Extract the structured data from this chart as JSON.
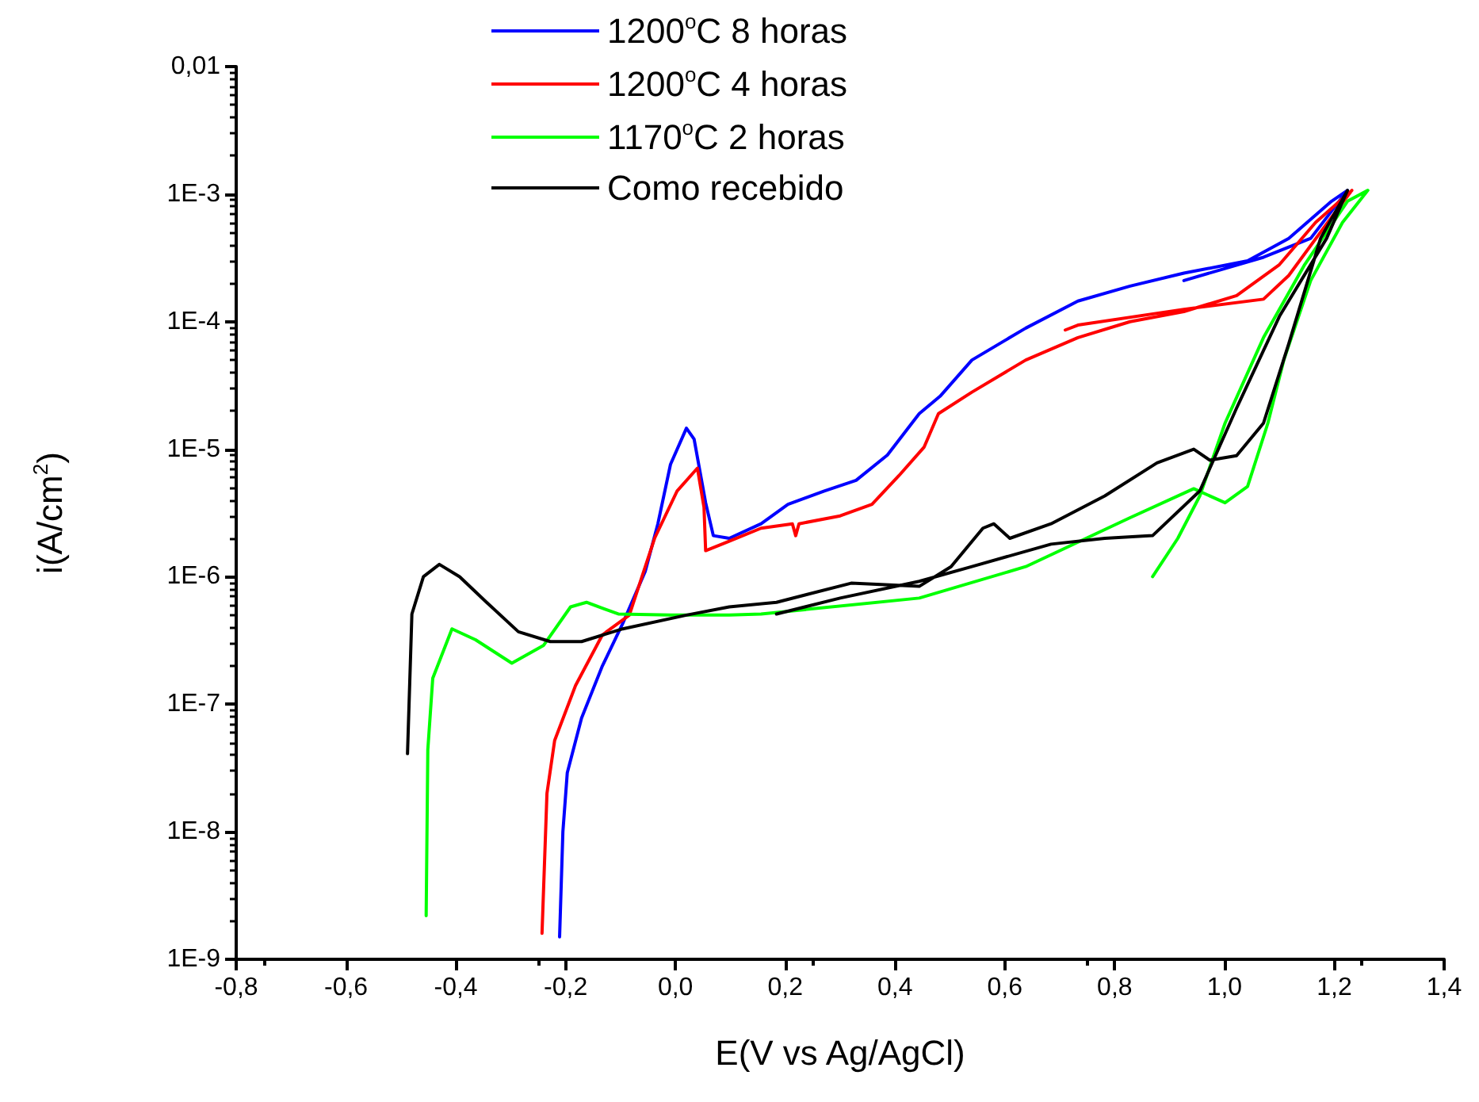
{
  "chart_data": {
    "type": "line",
    "xlabel": "E(V vs Ag/AgCl)",
    "ylabel": "i(A/cm$^{2}$)",
    "log": "y",
    "grid": false,
    "legend": "top",
    "marker": "none",
    "line_style": "solid",
    "xlim": [
      -0.8,
      1.4
    ],
    "xticks": [
      {
        "value": -0.8,
        "label": "-0,8"
      },
      {
        "value": -0.6,
        "label": "-0,6"
      },
      {
        "value": -0.4,
        "label": "-0,4"
      },
      {
        "value": -0.2,
        "label": "-0,2"
      },
      {
        "value": 0,
        "label": "0,0"
      },
      {
        "value": 0.2,
        "label": "0,2"
      },
      {
        "value": 0.4,
        "label": "0,4"
      },
      {
        "value": 0.6,
        "label": "0,6"
      },
      {
        "value": 0.8,
        "label": "0,8"
      },
      {
        "value": 1.0,
        "label": "1,0"
      },
      {
        "value": 1.2,
        "label": "1,2"
      },
      {
        "value": 1.4,
        "label": "1,4"
      }
    ],
    "ylim": [
      1e-09,
      0.01
    ],
    "yticks": [
      {
        "value": 1e-09,
        "label": "1E-9"
      },
      {
        "value": 1e-08,
        "label": "1E-8"
      },
      {
        "value": 1e-07,
        "label": "1E-7"
      },
      {
        "value": 1e-06,
        "label": "1E-6"
      },
      {
        "value": 1e-05,
        "label": "1E-5"
      },
      {
        "value": 0.0001,
        "label": "1E-4"
      },
      {
        "value": 0.001,
        "label": "1E-3"
      },
      {
        "value": 0.01,
        "label": "0,01"
      }
    ],
    "series": [
      {
        "name": "1200$^{o}$C 8 horas",
        "color": "#0000ff",
        "x": [
          -0.211,
          -0.205,
          -0.197,
          -0.171,
          -0.133,
          -0.096,
          -0.055,
          -0.032,
          -0.009,
          0.02,
          0.034,
          0.055,
          0.069,
          0.098,
          0.156,
          0.205,
          0.271,
          0.329,
          0.386,
          0.444,
          0.482,
          0.54,
          0.638,
          0.733,
          0.828,
          0.926,
          1.042,
          1.117,
          1.195,
          1.224,
          1.157,
          1.071,
          0.926
        ],
        "values": [
          1.5e-09,
          1e-08,
          2.9e-08,
          7.8e-08,
          2e-07,
          4.3e-07,
          1.1e-06,
          2.6e-06,
          7.6e-06,
          1.46e-05,
          1.2e-05,
          3.8e-06,
          2.1e-06,
          2e-06,
          2.6e-06,
          3.7e-06,
          4.7e-06,
          5.7e-06,
          9e-06,
          1.9e-05,
          2.6e-05,
          5e-05,
          8.9e-05,
          0.000145,
          0.00019,
          0.00024,
          0.0003,
          0.00045,
          0.00088,
          0.00107,
          0.00045,
          0.00032,
          0.00021
        ]
      },
      {
        "name": "1200$^{o}$C 4 horas",
        "color": "#ff0000",
        "x": [
          -0.243,
          -0.234,
          -0.22,
          -0.182,
          -0.133,
          -0.084,
          -0.038,
          0.003,
          0.04,
          0.052,
          0.055,
          0.098,
          0.156,
          0.213,
          0.219,
          0.225,
          0.3,
          0.358,
          0.407,
          0.453,
          0.479,
          0.54,
          0.638,
          0.733,
          0.828,
          0.926,
          1.022,
          1.1,
          1.166,
          1.232,
          1.195,
          1.117,
          1.071,
          0.926,
          0.733,
          0.71
        ],
        "values": [
          1.6e-09,
          2e-08,
          5.2e-08,
          1.4e-07,
          3.5e-07,
          5e-07,
          2e-06,
          4.7e-06,
          7.1e-06,
          3.5e-06,
          1.6e-06,
          1.9e-06,
          2.4e-06,
          2.6e-06,
          2.1e-06,
          2.6e-06,
          3e-06,
          3.7e-06,
          6.2e-06,
          1.04e-05,
          1.9e-05,
          2.8e-05,
          5e-05,
          7.5e-05,
          0.0001,
          0.00012,
          0.00016,
          0.00028,
          0.0006,
          0.00107,
          0.00066,
          0.00023,
          0.00015,
          0.000125,
          9.4e-05,
          8.6e-05
        ]
      },
      {
        "name": "1170$^{o}$C 2 horas",
        "color": "#00ff00",
        "x": [
          -0.454,
          -0.451,
          -0.442,
          -0.407,
          -0.364,
          -0.298,
          -0.24,
          -0.191,
          -0.162,
          -0.104,
          -0.009,
          0.098,
          0.156,
          0.444,
          0.638,
          0.828,
          0.944,
          1.001,
          1.042,
          1.079,
          1.108,
          1.157,
          1.215,
          1.261,
          1.224,
          1.146,
          1.071,
          1.001,
          0.955,
          0.915,
          0.869
        ],
        "values": [
          2.2e-09,
          4.4e-08,
          1.6e-07,
          3.9e-07,
          3.2e-07,
          2.1e-07,
          2.9e-07,
          5.8e-07,
          6.3e-07,
          5.1e-07,
          5e-07,
          5e-07,
          5.1e-07,
          6.8e-07,
          1.2e-06,
          2.9e-06,
          4.9e-06,
          3.8e-06,
          5.1e-06,
          1.6e-05,
          5e-05,
          0.00021,
          0.0006,
          0.00107,
          0.00088,
          0.00028,
          7.5e-05,
          1.6e-05,
          4.3e-06,
          2e-06,
          1e-06
        ]
      },
      {
        "name": "Como recebido",
        "color": "#000000",
        "x": [
          -0.488,
          -0.48,
          -0.459,
          -0.43,
          -0.393,
          -0.344,
          -0.286,
          -0.228,
          -0.171,
          -0.096,
          0.02,
          0.098,
          0.184,
          0.32,
          0.444,
          0.502,
          0.56,
          0.58,
          0.609,
          0.684,
          0.782,
          0.877,
          0.944,
          0.973,
          1.022,
          1.071,
          1.117,
          1.175,
          1.224,
          1.186,
          1.1,
          1.022,
          0.955,
          0.869,
          0.782,
          0.684,
          0.54,
          0.444,
          0.3,
          0.184
        ],
        "values": [
          4.1e-08,
          5.1e-07,
          1e-06,
          1.25e-06,
          1e-06,
          6.3e-07,
          3.7e-07,
          3.1e-07,
          3.1e-07,
          3.9e-07,
          5e-07,
          5.8e-07,
          6.3e-07,
          8.9e-07,
          8.4e-07,
          1.2e-06,
          2.4e-06,
          2.6e-06,
          2e-06,
          2.6e-06,
          4.3e-06,
          7.8e-06,
          1e-05,
          8.2e-06,
          8.9e-06,
          1.6e-05,
          6.7e-05,
          0.00045,
          0.00107,
          0.00045,
          0.00011,
          2.1e-05,
          4.7e-06,
          2.1e-06,
          2e-06,
          1.8e-06,
          1.2e-06,
          9.2e-07,
          6.8e-07,
          5.1e-07
        ]
      }
    ]
  }
}
